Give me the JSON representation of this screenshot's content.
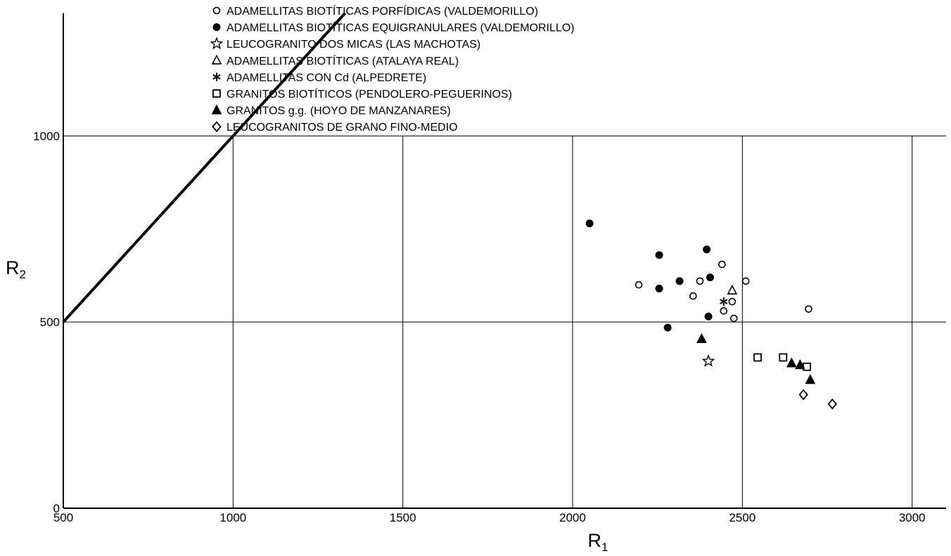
{
  "chart_data": {
    "type": "scatter",
    "xlabel": "R",
    "xlabel_sub": "1",
    "ylabel": "R",
    "ylabel_sub": "2",
    "xlim": [
      500,
      3100
    ],
    "ylim": [
      0,
      1350
    ],
    "x_ticks": [
      500,
      1000,
      1500,
      2000,
      2500,
      3000
    ],
    "y_ticks": [
      0,
      500,
      1000
    ],
    "grid": "partial",
    "legend_position": "top-right",
    "reference_line": {
      "x": [
        500,
        1330
      ],
      "y": [
        500,
        1330
      ]
    },
    "series": [
      {
        "name": "ADAMELLITAS BIOTÍTICAS PORFÍDICAS (VALDEMORILLO)",
        "marker": "circle-open",
        "points": [
          [
            2195,
            600
          ],
          [
            2355,
            570
          ],
          [
            2375,
            610
          ],
          [
            2440,
            655
          ],
          [
            2445,
            530
          ],
          [
            2470,
            555
          ],
          [
            2475,
            510
          ],
          [
            2510,
            610
          ],
          [
            2695,
            535
          ]
        ]
      },
      {
        "name": "ADAMELLITAS BIOTÍTICAS EQUIGRANULARES (VALDEMORILLO)",
        "marker": "circle-filled",
        "points": [
          [
            2050,
            765
          ],
          [
            2255,
            680
          ],
          [
            2255,
            590
          ],
          [
            2315,
            610
          ],
          [
            2280,
            485
          ],
          [
            2395,
            695
          ],
          [
            2405,
            620
          ],
          [
            2400,
            515
          ]
        ]
      },
      {
        "name": "LEUCOGRANITO DOS MICAS (LAS MACHOTAS)",
        "marker": "star",
        "points": [
          [
            2400,
            395
          ]
        ]
      },
      {
        "name": "ADAMELLITAS BIOTÍTICAS (ATALAYA REAL)",
        "marker": "triangle-open",
        "points": [
          [
            2470,
            585
          ]
        ]
      },
      {
        "name": "ADAMELLITAS CON Cd (ALPEDRETE)",
        "marker": "asterisk",
        "points": [
          [
            2445,
            555
          ]
        ]
      },
      {
        "name": "GRANITOS BIOTÍTICOS (PENDOLERO-PEGUERINOS)",
        "marker": "square-open",
        "points": [
          [
            2545,
            405
          ],
          [
            2620,
            405
          ],
          [
            2690,
            380
          ]
        ]
      },
      {
        "name": "GRANITOS g.g. (HOYO DE MANZANARES)",
        "marker": "triangle-filled",
        "points": [
          [
            2380,
            455
          ],
          [
            2645,
            390
          ],
          [
            2670,
            385
          ],
          [
            2700,
            345
          ]
        ]
      },
      {
        "name": "LEUCOGRANITOS DE GRANO FINO-MEDIO",
        "marker": "diamond-open",
        "points": [
          [
            2680,
            305
          ],
          [
            2765,
            280
          ]
        ]
      }
    ]
  }
}
